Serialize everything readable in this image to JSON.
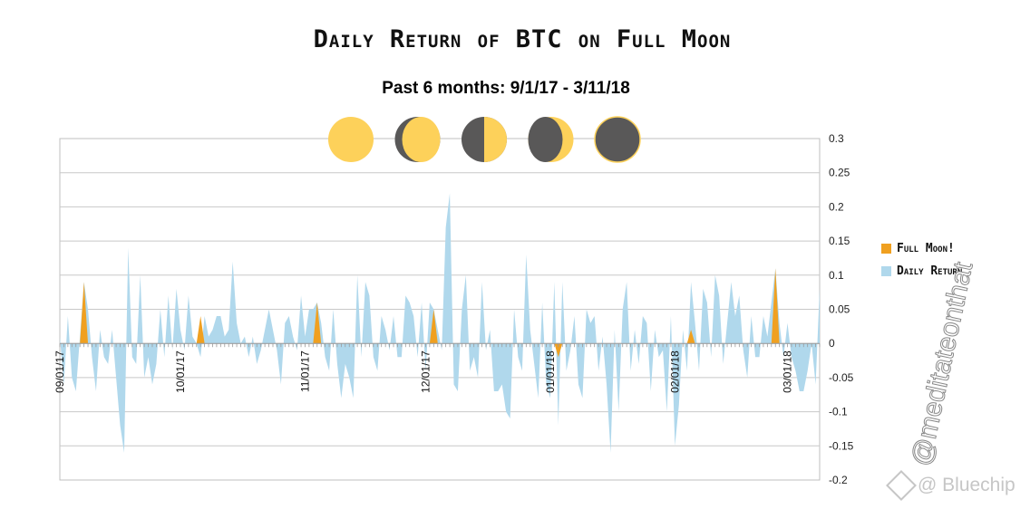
{
  "chart_data": {
    "type": "area",
    "title": "Daily Return of BTC on Full Moon",
    "subtitle": "Past 6 months: 9/1/17 - 3/11/18",
    "xlabel": "",
    "ylabel": "",
    "x_tick_labels": [
      "09/01/17",
      "10/01/17",
      "11/01/17",
      "12/01/17",
      "01/01/18",
      "02/01/18",
      "03/01/18"
    ],
    "x_start": "2017-09-01",
    "x_end": "2018-03-11",
    "ylim": [
      -0.2,
      0.3
    ],
    "y_ticks": [
      0.3,
      0.25,
      0.2,
      0.15,
      0.1,
      0.05,
      0,
      -0.05,
      -0.1,
      -0.15,
      -0.2
    ],
    "grid": true,
    "legend_position": "right",
    "series": [
      {
        "name": "Full Moon!",
        "color": "#f0a020",
        "values": [
          0,
          0,
          0,
          0,
          0,
          0,
          0.09,
          0,
          0,
          0,
          0,
          0,
          0,
          0,
          0,
          0,
          0,
          0,
          0,
          0,
          0,
          0,
          0,
          0,
          0,
          0,
          0,
          0,
          0,
          0,
          0,
          0,
          0,
          0,
          0,
          0.04,
          0,
          0,
          0,
          0,
          0,
          0,
          0,
          0,
          0,
          0,
          0,
          0,
          0,
          0,
          0,
          0,
          0,
          0,
          0,
          0,
          0,
          0,
          0,
          0,
          0,
          0,
          0,
          0,
          0.06,
          0,
          0,
          0,
          0,
          0,
          0,
          0,
          0,
          0,
          0,
          0,
          0,
          0,
          0,
          0,
          0,
          0,
          0,
          0,
          0,
          0,
          0,
          0,
          0,
          0,
          0,
          0,
          0,
          0.05,
          0,
          0,
          0,
          0,
          0,
          0,
          0,
          0,
          0,
          0,
          0,
          0,
          0,
          0,
          0,
          0,
          0,
          0,
          0,
          0,
          0,
          0,
          0,
          0,
          0,
          0,
          0,
          0,
          0,
          0,
          -0.02,
          0,
          0,
          0,
          0,
          0,
          0,
          0,
          0,
          0,
          0,
          0,
          0,
          0,
          0,
          0,
          0,
          0,
          0,
          0,
          0,
          0,
          0,
          0,
          0,
          0,
          0,
          0,
          0,
          0,
          0,
          0,
          0,
          0.02,
          0,
          0,
          0,
          0,
          0,
          0,
          0,
          0,
          0,
          0,
          0,
          0,
          0,
          0,
          0,
          0,
          0,
          0,
          0,
          0,
          0.11,
          0,
          0,
          0,
          0,
          0,
          0,
          0,
          0,
          0,
          0,
          0,
          0
        ]
      },
      {
        "name": "Daily Return",
        "color": "#b0d8ec",
        "values": [
          0.01,
          -0.06,
          0.04,
          -0.05,
          -0.07,
          0.01,
          0.09,
          0.05,
          -0.02,
          -0.07,
          0.02,
          -0.02,
          -0.03,
          0.02,
          -0.05,
          -0.12,
          -0.16,
          0.14,
          -0.02,
          -0.03,
          0.1,
          -0.05,
          -0.02,
          -0.06,
          -0.03,
          0.05,
          -0.02,
          0.07,
          -0.01,
          0.08,
          0.02,
          -0.01,
          0.07,
          0.01,
          0.0,
          -0.02,
          0.04,
          0.01,
          0.02,
          0.04,
          0.04,
          0.01,
          0.02,
          0.12,
          0.03,
          0.0,
          0.01,
          -0.02,
          0.01,
          -0.03,
          -0.01,
          0.02,
          0.05,
          0.02,
          -0.01,
          -0.06,
          0.03,
          0.04,
          0.01,
          -0.01,
          0.07,
          0.01,
          0.05,
          0.05,
          0.06,
          0.03,
          -0.02,
          -0.04,
          0.05,
          -0.03,
          -0.08,
          -0.03,
          -0.05,
          -0.08,
          0.1,
          -0.02,
          0.09,
          0.07,
          -0.02,
          -0.04,
          0.04,
          0.02,
          -0.01,
          0.04,
          -0.02,
          -0.02,
          0.07,
          0.06,
          0.04,
          -0.02,
          0.06,
          -0.04,
          0.06,
          0.05,
          0.02,
          -0.01,
          0.17,
          0.22,
          -0.06,
          -0.07,
          0.05,
          0.1,
          -0.04,
          -0.02,
          -0.05,
          0.09,
          -0.01,
          0.02,
          -0.07,
          -0.07,
          -0.06,
          -0.1,
          -0.11,
          0.05,
          -0.02,
          -0.04,
          0.13,
          0.02,
          -0.03,
          -0.08,
          0.06,
          -0.06,
          -0.08,
          0.09,
          -0.12,
          0.09,
          -0.04,
          -0.01,
          0.04,
          -0.06,
          -0.08,
          0.05,
          0.03,
          0.04,
          -0.04,
          0.01,
          -0.06,
          -0.16,
          0.02,
          -0.1,
          0.05,
          0.09,
          -0.04,
          0.02,
          -0.03,
          0.04,
          0.03,
          -0.07,
          0.02,
          -0.02,
          -0.01,
          -0.1,
          0.04,
          -0.15,
          -0.09,
          0.02,
          -0.04,
          0.09,
          0.03,
          -0.04,
          0.08,
          0.06,
          -0.02,
          0.1,
          0.07,
          -0.03,
          0.03,
          0.09,
          0.04,
          0.07,
          -0.01,
          -0.05,
          0.04,
          -0.02,
          -0.02,
          0.04,
          0.01,
          0.06,
          0.11,
          0.03,
          -0.02,
          0.03,
          -0.02,
          -0.04,
          -0.07,
          -0.07,
          -0.04,
          0.0,
          -0.06,
          0.08
        ]
      }
    ],
    "moon_phases": [
      "full-moon-icon",
      "waning-gibbous-icon",
      "last-quarter-icon",
      "waning-crescent-icon",
      "new-moon-icon"
    ],
    "moon_colors": {
      "light": "#fdd15a",
      "dark": "#595858"
    }
  },
  "watermark": {
    "handle": "@meditateonthat",
    "brand": "@ Bluechip"
  }
}
